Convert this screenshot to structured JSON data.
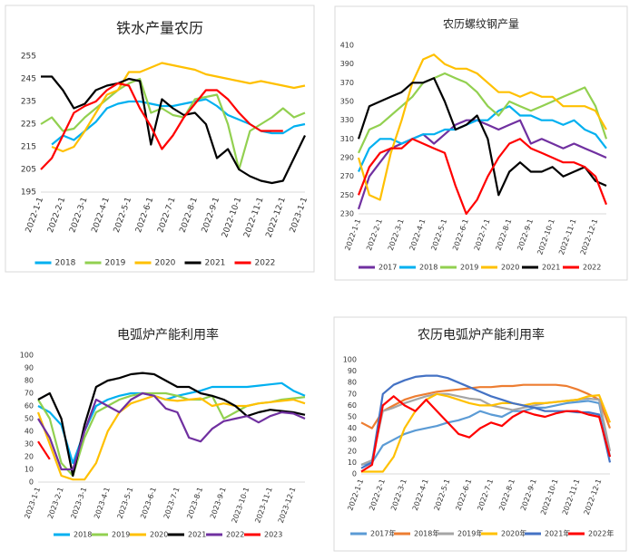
{
  "chart_data": [
    {
      "type": "line",
      "title": "铁水产量农历",
      "categories": [
        "2022-1-1",
        null,
        "2022-2-1",
        null,
        "2022-3-1",
        null,
        "2022-4-1",
        null,
        "2022-5-1",
        null,
        "2022-6-1",
        null,
        "2022-7-1",
        null,
        "2022-8-1",
        null,
        "2022-9-1",
        null,
        "2022-10-1",
        null,
        "2022-11-1",
        null,
        "2022-12-1",
        null,
        "2023-1-1"
      ],
      "ylim": [
        195,
        255
      ],
      "yticks": [
        195,
        205,
        215,
        225,
        235,
        245,
        255
      ],
      "grid": false,
      "series": [
        {
          "name": "2018",
          "color": "#00b0f0",
          "values": [
            null,
            216,
            220,
            218,
            222,
            226,
            232,
            234,
            235,
            235,
            234,
            233,
            233,
            234,
            235,
            236,
            233,
            229,
            227,
            225,
            222,
            221,
            221,
            224,
            225
          ]
        },
        {
          "name": "2019",
          "color": "#92d050",
          "values": [
            225,
            228,
            222,
            223,
            228,
            232,
            236,
            240,
            243,
            245,
            230,
            232,
            229,
            228,
            236,
            237,
            238,
            225,
            205,
            222,
            225,
            228,
            232,
            228,
            230
          ]
        },
        {
          "name": "2020",
          "color": "#ffc000",
          "values": [
            null,
            215,
            213,
            215,
            222,
            230,
            238,
            240,
            248,
            248,
            250,
            252,
            251,
            250,
            249,
            247,
            246,
            245,
            244,
            243,
            244,
            243,
            242,
            241,
            242
          ]
        },
        {
          "name": "2021",
          "color": "#000000",
          "values": [
            246,
            246,
            240,
            232,
            234,
            240,
            242,
            243,
            245,
            244,
            216,
            236,
            232,
            229,
            230,
            225,
            210,
            214,
            205,
            202,
            200,
            199,
            200,
            210,
            220
          ]
        },
        {
          "name": "2022",
          "color": "#ff0000",
          "values": [
            205,
            210,
            220,
            230,
            233,
            235,
            240,
            243,
            242,
            232,
            224,
            214,
            220,
            228,
            234,
            240,
            240,
            236,
            230,
            225,
            222,
            222,
            222,
            null,
            null
          ]
        }
      ]
    },
    {
      "type": "line",
      "title": "农历螺纹钢产量",
      "categories": [
        "2022-1-1",
        null,
        "2022-2-1",
        null,
        "2022-3-1",
        null,
        "2022-4-1",
        null,
        "2022-5-1",
        null,
        "2022-6-1",
        null,
        "2022-7-1",
        null,
        "2022-8-1",
        null,
        "2022-9-1",
        null,
        "2022-10-1",
        null,
        "2022-11-1",
        null,
        "2022-12-1",
        null
      ],
      "ylim": [
        230,
        410
      ],
      "yticks": [
        230,
        250,
        270,
        290,
        310,
        330,
        350,
        370,
        390,
        410
      ],
      "grid": false,
      "series": [
        {
          "name": "2017",
          "color": "#7030a0",
          "values": [
            235,
            270,
            285,
            300,
            305,
            310,
            315,
            305,
            315,
            325,
            330,
            330,
            325,
            320,
            325,
            330,
            305,
            310,
            305,
            300,
            305,
            300,
            295,
            290
          ]
        },
        {
          "name": "2018",
          "color": "#00b0f0",
          "values": [
            275,
            300,
            310,
            310,
            305,
            310,
            315,
            315,
            320,
            320,
            325,
            330,
            330,
            340,
            345,
            335,
            335,
            330,
            330,
            325,
            330,
            320,
            315,
            300
          ]
        },
        {
          "name": "2019",
          "color": "#92d050",
          "values": [
            295,
            320,
            325,
            335,
            345,
            355,
            370,
            375,
            380,
            375,
            370,
            360,
            345,
            335,
            350,
            345,
            340,
            345,
            350,
            355,
            360,
            365,
            345,
            310
          ]
        },
        {
          "name": "2020",
          "color": "#ffc000",
          "values": [
            290,
            250,
            245,
            295,
            330,
            370,
            395,
            400,
            390,
            385,
            385,
            380,
            370,
            360,
            360,
            355,
            360,
            355,
            355,
            345,
            345,
            345,
            340,
            320
          ]
        },
        {
          "name": "2021",
          "color": "#000000",
          "values": [
            310,
            345,
            350,
            355,
            360,
            370,
            370,
            375,
            350,
            320,
            325,
            335,
            310,
            250,
            275,
            285,
            275,
            275,
            280,
            270,
            275,
            280,
            265,
            260
          ]
        },
        {
          "name": "2022",
          "color": "#ff0000",
          "values": [
            250,
            280,
            295,
            300,
            300,
            310,
            305,
            300,
            295,
            260,
            230,
            245,
            270,
            290,
            305,
            310,
            300,
            295,
            290,
            285,
            285,
            280,
            270,
            240
          ]
        }
      ]
    },
    {
      "type": "line",
      "title": "电弧炉产能利用率",
      "categories": [
        "2023-1-1",
        null,
        "2023-2-1",
        null,
        "2023-3-1",
        null,
        "2023-4-1",
        null,
        "2023-5-1",
        null,
        "2023-6-1",
        null,
        "2023-7-1",
        null,
        "2023-8-1",
        null,
        "2023-9-1",
        null,
        "2023-10-1",
        null,
        "2023-11-1",
        null,
        "2023-12-1",
        null
      ],
      "ylim": [
        0,
        100
      ],
      "yticks": [
        0,
        10,
        20,
        30,
        40,
        50,
        60,
        70,
        80,
        90,
        100
      ],
      "grid": false,
      "series": [
        {
          "name": "2018",
          "color": "#00b0f0",
          "values": [
            60,
            55,
            45,
            15,
            40,
            60,
            65,
            68,
            70,
            70,
            68,
            65,
            68,
            70,
            72,
            75,
            75,
            75,
            75,
            76,
            77,
            78,
            72,
            68
          ]
        },
        {
          "name": "2019",
          "color": "#92d050",
          "values": [
            65,
            50,
            15,
            5,
            35,
            55,
            60,
            65,
            68,
            70,
            70,
            70,
            68,
            65,
            65,
            68,
            50,
            55,
            60,
            62,
            63,
            65,
            66,
            67
          ]
        },
        {
          "name": "2020",
          "color": "#ffc000",
          "values": [
            55,
            30,
            5,
            2,
            2,
            15,
            40,
            55,
            62,
            65,
            68,
            65,
            64,
            65,
            66,
            60,
            62,
            60,
            60,
            62,
            63,
            64,
            65,
            62
          ]
        },
        {
          "name": "2021",
          "color": "#000000",
          "values": [
            65,
            70,
            50,
            5,
            45,
            75,
            80,
            82,
            85,
            86,
            85,
            80,
            75,
            75,
            70,
            68,
            65,
            60,
            52,
            55,
            57,
            56,
            55,
            53
          ]
        },
        {
          "name": "2022",
          "color": "#7030a0",
          "values": [
            50,
            35,
            10,
            10,
            40,
            65,
            60,
            55,
            65,
            70,
            68,
            58,
            55,
            35,
            32,
            42,
            48,
            50,
            52,
            47,
            52,
            55,
            54,
            50
          ]
        },
        {
          "name": "2023",
          "color": "#ff0000",
          "values": [
            32,
            18,
            null,
            null,
            null,
            null,
            null,
            null,
            null,
            null,
            null,
            null,
            null,
            null,
            null,
            null,
            null,
            null,
            null,
            null,
            null,
            null,
            null,
            null
          ]
        }
      ]
    },
    {
      "type": "line",
      "title": "农历电弧炉产能利用率",
      "categories": [
        "2022-1-1",
        null,
        "2022-2-1",
        null,
        "2022-3-1",
        null,
        "2022-4-1",
        null,
        "2022-5-1",
        null,
        "2022-6-1",
        null,
        "2022-7-1",
        null,
        "2022-8-1",
        null,
        "2022-9-1",
        null,
        "2022-10-1",
        null,
        "2022-11-1",
        null,
        "2022-12-1",
        null
      ],
      "ylim": [
        0,
        100
      ],
      "yticks": [
        0,
        10,
        20,
        30,
        40,
        50,
        60,
        70,
        80,
        90,
        100
      ],
      "grid": false,
      "series": [
        {
          "name": "2017年",
          "color": "#5b9bd5",
          "values": [
            8,
            10,
            25,
            30,
            35,
            38,
            40,
            42,
            45,
            47,
            50,
            55,
            52,
            50,
            55,
            55,
            58,
            58,
            60,
            62,
            63,
            64,
            62,
            15
          ]
        },
        {
          "name": "2018年",
          "color": "#ed7d31",
          "values": [
            45,
            40,
            55,
            60,
            65,
            68,
            70,
            72,
            73,
            74,
            75,
            76,
            76,
            77,
            77,
            78,
            78,
            78,
            78,
            77,
            74,
            70,
            65,
            40
          ]
        },
        {
          "name": "2019年",
          "color": "#a5a5a5",
          "values": [
            8,
            12,
            55,
            58,
            62,
            65,
            68,
            70,
            70,
            68,
            66,
            65,
            60,
            58,
            56,
            58,
            60,
            62,
            63,
            64,
            65,
            66,
            65,
            20
          ]
        },
        {
          "name": "2020年",
          "color": "#ffc000",
          "values": [
            2,
            2,
            2,
            15,
            40,
            55,
            65,
            70,
            68,
            65,
            62,
            60,
            60,
            62,
            62,
            60,
            62,
            62,
            63,
            64,
            65,
            68,
            69,
            45
          ]
        },
        {
          "name": "2021年",
          "color": "#4472c4",
          "values": [
            5,
            10,
            70,
            78,
            82,
            85,
            86,
            86,
            84,
            80,
            76,
            72,
            68,
            65,
            62,
            60,
            58,
            55,
            55,
            55,
            54,
            54,
            52,
            10
          ]
        },
        {
          "name": "2022年",
          "color": "#ff0000",
          "values": [
            2,
            8,
            60,
            68,
            60,
            55,
            65,
            55,
            45,
            35,
            32,
            40,
            45,
            42,
            50,
            55,
            52,
            50,
            53,
            55,
            55,
            52,
            50,
            15
          ]
        }
      ]
    }
  ]
}
